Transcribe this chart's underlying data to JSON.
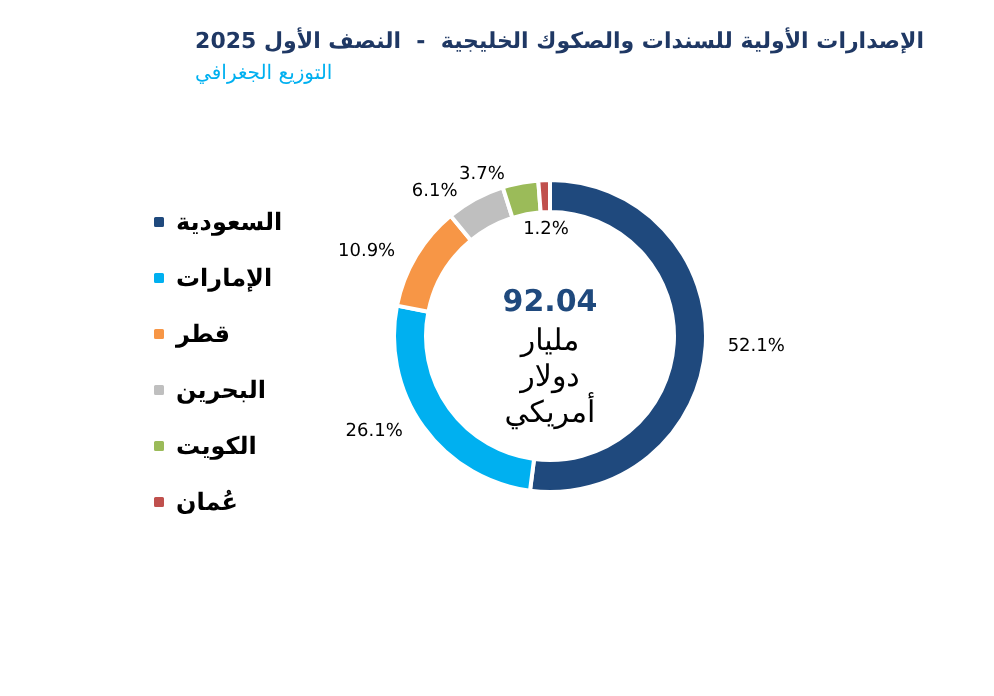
{
  "chart_data": {
    "type": "donut",
    "title": "الإصدارات الأولية للسندات والصكوك الخليجية  -  النصف الأول 2025",
    "subtitle": "التوزيع الجغرافي",
    "categories": [
      "السعودية",
      "الإمارات",
      "قطر",
      "البحرين",
      "الكويت",
      "عُمان"
    ],
    "values": [
      52.1,
      26.1,
      10.9,
      6.1,
      3.7,
      1.2
    ],
    "colors": [
      "#1f497d",
      "#00b0f0",
      "#f79646",
      "#bfbfbf",
      "#9bbb59",
      "#c0504d"
    ],
    "value_labels": [
      "52.1%",
      "26.1%",
      "10.9%",
      "6.1%",
      "3.7%",
      "1.2%"
    ],
    "legend": "left",
    "annotations": [
      "92.04",
      "مليار\nدولار\nأمريكي"
    ]
  }
}
